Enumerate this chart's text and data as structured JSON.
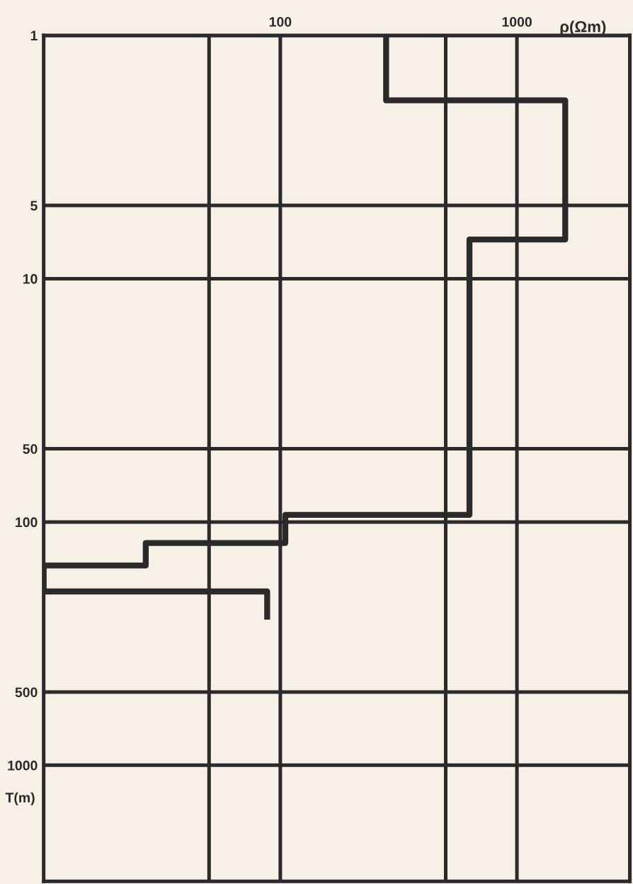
{
  "chart_data": {
    "type": "line",
    "xlabel": "ρ(Ωm)",
    "ylabel": "T(m)",
    "log": "xy",
    "grid": true,
    "marker": "none",
    "line_style": "solid",
    "xlim": [
      10,
      3000
    ],
    "xticks": [
      {
        "value": 50,
        "label": null
      },
      100,
      {
        "value": 500,
        "label": null
      },
      1000
    ],
    "ylim": [
      3000,
      1
    ],
    "yticks": [
      1,
      5,
      10,
      50,
      100,
      500,
      1000
    ],
    "series": [
      {
        "color": "#2a2a2a",
        "x": [
          280,
          280,
          1600,
          1600,
          630,
          630,
          105,
          105,
          27,
          27,
          10,
          10,
          88,
          88
        ],
        "values": [
          1,
          1.85,
          1.85,
          6.9,
          6.9,
          93.5,
          93.5,
          122,
          122,
          151,
          151,
          193,
          193,
          252
        ]
      }
    ]
  }
}
